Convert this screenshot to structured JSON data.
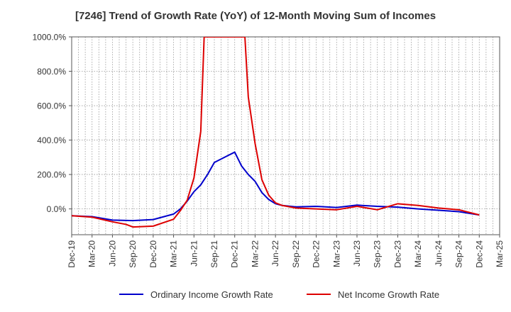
{
  "chart_data": {
    "type": "line",
    "title": "[7246]  Trend of Growth Rate (YoY) of 12-Month Moving Sum of Incomes",
    "xlabel": "",
    "ylabel": "",
    "ylim": [
      -150,
      1000
    ],
    "yticks": [
      0,
      200,
      400,
      600,
      800,
      1000
    ],
    "ytick_labels": [
      "0.0%",
      "200.0%",
      "400.0%",
      "600.0%",
      "800.0%",
      "1000.0%"
    ],
    "xtick_labels": [
      "Dec-19",
      "Mar-20",
      "Jun-20",
      "Sep-20",
      "Dec-20",
      "Mar-21",
      "Jun-21",
      "Sep-21",
      "Dec-21",
      "Mar-22",
      "Jun-22",
      "Sep-22",
      "Dec-22",
      "Mar-23",
      "Jun-23",
      "Sep-23",
      "Dec-23",
      "Mar-24",
      "Jun-24",
      "Sep-24",
      "Dec-24",
      "Mar-25"
    ],
    "grid": true,
    "legend_position": "bottom",
    "series": [
      {
        "name": "Ordinary Income Growth Rate",
        "color": "#0000cc",
        "points": [
          [
            0,
            -40
          ],
          [
            3,
            -45
          ],
          [
            6,
            -65
          ],
          [
            9,
            -68
          ],
          [
            12,
            -62
          ],
          [
            15,
            -30
          ],
          [
            16,
            0
          ],
          [
            17,
            45
          ],
          [
            18,
            100
          ],
          [
            19,
            140
          ],
          [
            20,
            200
          ],
          [
            21,
            270
          ],
          [
            22,
            290
          ],
          [
            23,
            310
          ],
          [
            24,
            330
          ],
          [
            25,
            250
          ],
          [
            26,
            200
          ],
          [
            27,
            160
          ],
          [
            28,
            95
          ],
          [
            29,
            55
          ],
          [
            30,
            30
          ],
          [
            31,
            20
          ],
          [
            33,
            12
          ],
          [
            36,
            15
          ],
          [
            39,
            8
          ],
          [
            42,
            22
          ],
          [
            45,
            15
          ],
          [
            48,
            10
          ],
          [
            51,
            0
          ],
          [
            54,
            -8
          ],
          [
            57,
            -16
          ],
          [
            60,
            -35
          ]
        ]
      },
      {
        "name": "Net Income Growth Rate",
        "color": "#dd0000",
        "points": [
          [
            0,
            -40
          ],
          [
            3,
            -48
          ],
          [
            6,
            -75
          ],
          [
            8,
            -90
          ],
          [
            9,
            -105
          ],
          [
            12,
            -100
          ],
          [
            15,
            -60
          ],
          [
            16,
            -10
          ],
          [
            17,
            50
          ],
          [
            18,
            180
          ],
          [
            19,
            450
          ],
          [
            19.5,
            1000
          ],
          [
            25.5,
            1000
          ],
          [
            26,
            650
          ],
          [
            27,
            380
          ],
          [
            28,
            170
          ],
          [
            29,
            80
          ],
          [
            30,
            35
          ],
          [
            31,
            20
          ],
          [
            33,
            5
          ],
          [
            36,
            0
          ],
          [
            39,
            -5
          ],
          [
            42,
            15
          ],
          [
            45,
            -5
          ],
          [
            48,
            30
          ],
          [
            51,
            20
          ],
          [
            54,
            5
          ],
          [
            57,
            -5
          ],
          [
            60,
            -35
          ]
        ]
      }
    ]
  }
}
